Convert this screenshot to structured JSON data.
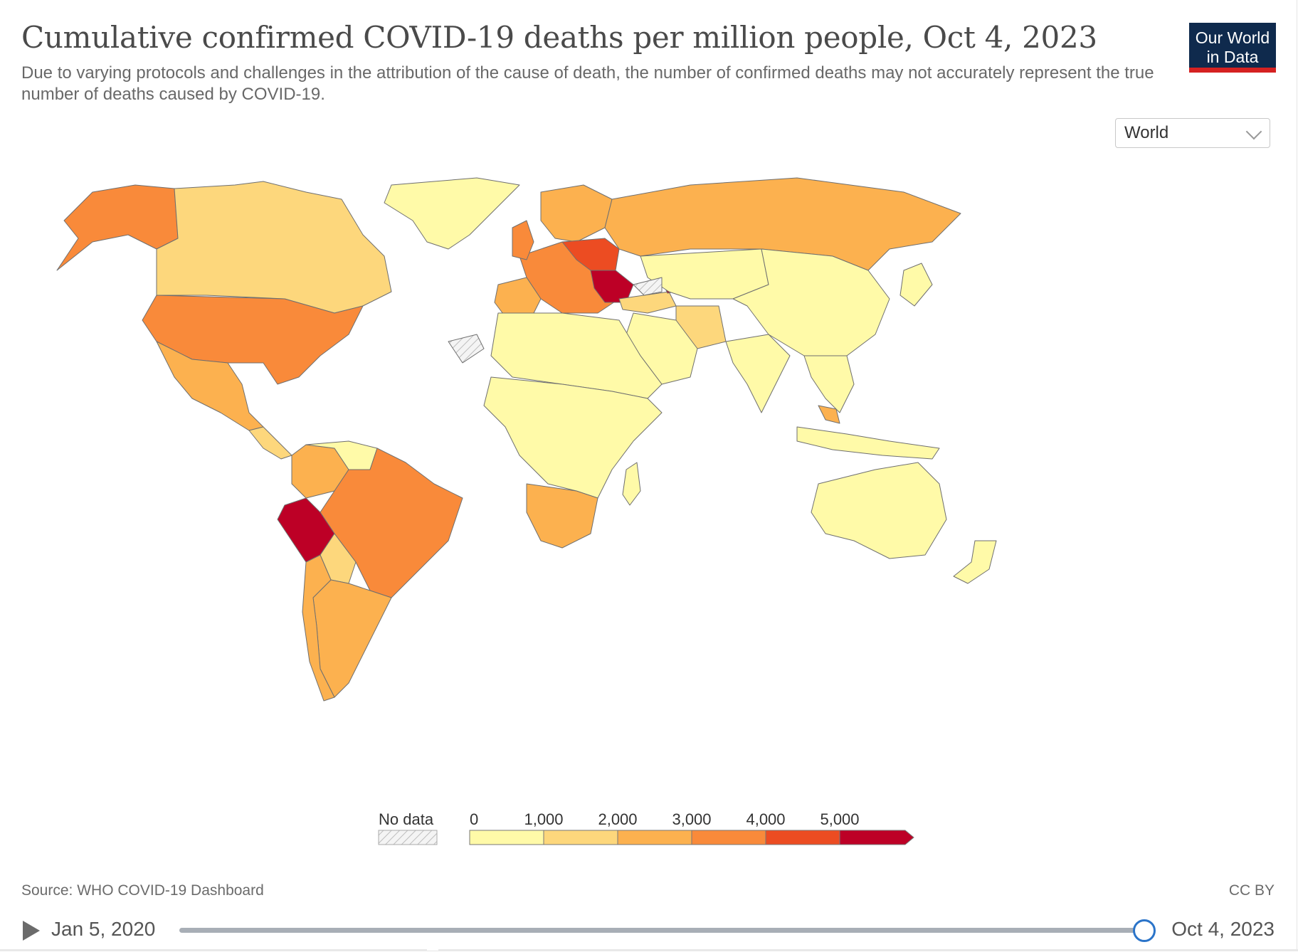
{
  "header": {
    "title": "Cumulative confirmed COVID-19 deaths per million people, Oct 4, 2023",
    "subtitle": "Due to varying protocols and challenges in the attribution of the cause of death, the number of confirmed deaths may not accurately represent the true number of deaths caused by COVID-19."
  },
  "logo": {
    "line1": "Our World",
    "line2": "in Data",
    "bg": "#0f2a4d",
    "accent": "#d52121"
  },
  "region_select": {
    "selected": "World",
    "icon": "chevron-down-icon"
  },
  "legend": {
    "no_data_label": "No data",
    "thresholds": [
      "0",
      "1,000",
      "2,000",
      "3,000",
      "4,000",
      "5,000"
    ],
    "colors": [
      "#fffaa8",
      "#fdd77c",
      "#fcb14f",
      "#f98a3a",
      "#ec4c22",
      "#bd0026"
    ],
    "no_data_pattern": "hatched-gray"
  },
  "map_colors": {
    "bin0": "#fffaa8",
    "bin1": "#fdd77c",
    "bin2": "#fcb14f",
    "bin3": "#f98a3a",
    "bin4": "#ec4c22",
    "bin5": "#bd0026",
    "border": "#6f6f6f",
    "nodata": "#e8e8e8"
  },
  "footer": {
    "source": "Source: WHO COVID-19 Dashboard",
    "license": "CC BY"
  },
  "timeline": {
    "start": "Jan 5, 2020",
    "end": "Oct 4, 2023",
    "progress": 1.0
  }
}
